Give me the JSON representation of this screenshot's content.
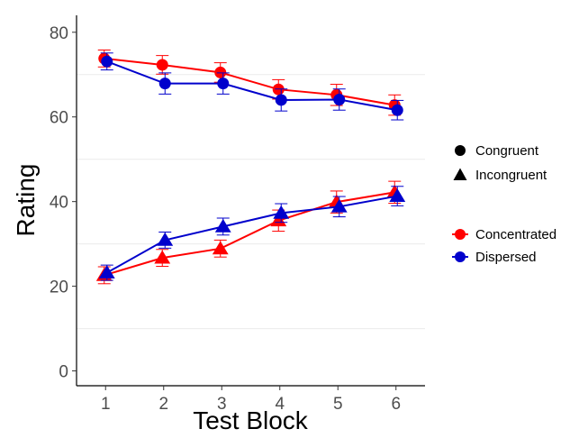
{
  "chart_data": {
    "type": "line",
    "xlabel": "Test Block",
    "ylabel": "Rating",
    "x": [
      1,
      2,
      3,
      4,
      5,
      6
    ],
    "xlim": [
      0.5,
      6.5
    ],
    "ylim": [
      -3.5,
      84
    ],
    "yticks": [
      0,
      20,
      40,
      60,
      80
    ],
    "grid": "horizontal-minor",
    "gridlines": [
      10,
      30,
      50,
      70
    ],
    "series": [
      {
        "condition": "Concentrated",
        "shape": "Congruent",
        "color": "#ff0000",
        "values": [
          73.8,
          72.3,
          70.5,
          66.5,
          65.2,
          62.8
        ],
        "errors": [
          2.0,
          2.2,
          2.3,
          2.3,
          2.5,
          2.4
        ]
      },
      {
        "condition": "Dispersed",
        "shape": "Congruent",
        "color": "#0000cc",
        "values": [
          73.1,
          67.9,
          67.9,
          64.0,
          64.1,
          61.6
        ],
        "errors": [
          2.0,
          2.5,
          2.5,
          2.6,
          2.5,
          2.3
        ]
      },
      {
        "condition": "Concentrated",
        "shape": "Incongruent",
        "color": "#ff0000",
        "values": [
          22.6,
          26.7,
          28.9,
          35.5,
          39.9,
          42.2
        ],
        "errors": [
          2.0,
          2.0,
          2.0,
          2.5,
          2.6,
          2.6
        ]
      },
      {
        "condition": "Dispersed",
        "shape": "Incongruent",
        "color": "#0000cc",
        "values": [
          23.2,
          30.9,
          34.1,
          37.3,
          38.8,
          41.3
        ],
        "errors": [
          1.8,
          1.9,
          2.0,
          2.2,
          2.4,
          2.3
        ]
      }
    ],
    "legend": {
      "placement": "right",
      "shapes": [
        {
          "label": "Congruent",
          "marker": "circle"
        },
        {
          "label": "Incongruent",
          "marker": "triangle"
        }
      ],
      "colors": [
        {
          "label": "Concentrated",
          "color": "#ff0000"
        },
        {
          "label": "Dispersed",
          "color": "#0000cc"
        }
      ]
    }
  }
}
